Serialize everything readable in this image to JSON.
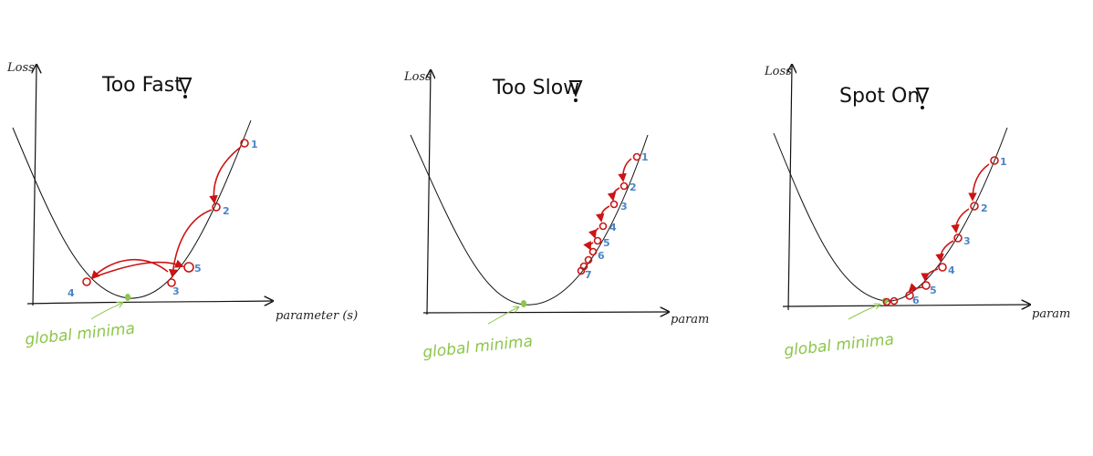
{
  "panels": [
    {
      "title": "Too Fast",
      "y_label": "Loss",
      "x_label": "parameter (s)",
      "minima_label": "global minima",
      "step_labels": [
        "1",
        "2",
        "3",
        "4",
        "5"
      ]
    },
    {
      "title": "Too Slow",
      "y_label": "Loss",
      "x_label": "param",
      "minima_label": "global minima",
      "step_labels": [
        "1",
        "2",
        "3",
        "4",
        "5",
        "6",
        "7"
      ]
    },
    {
      "title": "Spot On",
      "y_label": "Loss",
      "x_label": "param",
      "minima_label": "global minima",
      "step_labels": [
        "1",
        "2",
        "3",
        "4",
        "5",
        "6"
      ]
    }
  ],
  "colors": {
    "step": "#cc1414",
    "minima": "#8cc64b",
    "step_label": "#4a86c6",
    "ink": "#111111"
  },
  "icons": [
    "nabla-icon"
  ]
}
